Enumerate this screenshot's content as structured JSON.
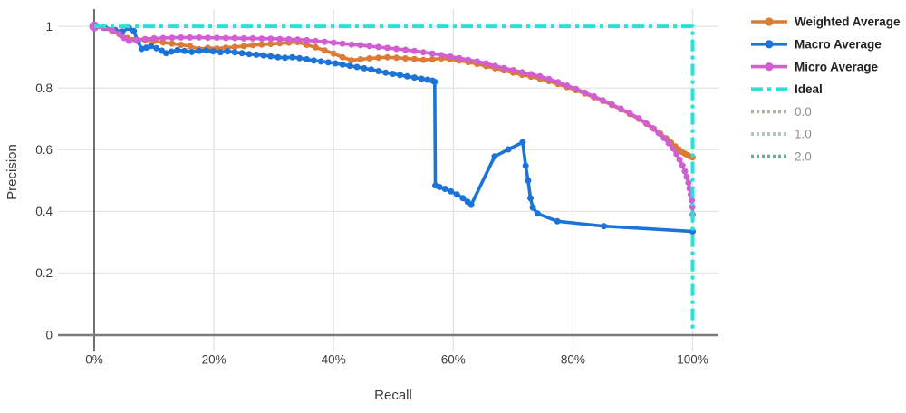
{
  "chart_data": {
    "type": "line",
    "title": "",
    "xlabel": "Recall",
    "ylabel": "Precision",
    "x_ticks": [
      {
        "label": "0%",
        "value": 0
      },
      {
        "label": "20%",
        "value": 20
      },
      {
        "label": "40%",
        "value": 40
      },
      {
        "label": "60%",
        "value": 60
      },
      {
        "label": "80%",
        "value": 80
      },
      {
        "label": "100%",
        "value": 100
      }
    ],
    "y_ticks": [
      {
        "label": "0",
        "value": 0
      },
      {
        "label": "0.2",
        "value": 0.2
      },
      {
        "label": "0.4",
        "value": 0.4
      },
      {
        "label": "0.6",
        "value": 0.6
      },
      {
        "label": "0.8",
        "value": 0.8
      },
      {
        "label": "1",
        "value": 1
      }
    ],
    "xlim": [
      0,
      104.5
    ],
    "ylim": [
      0,
      1.056
    ],
    "grid": true,
    "legend_position": "right",
    "colors": {
      "grid": "#e4e4e4",
      "x_axis_line": "#7a7a7a",
      "y_axis_line": "#4d4d4d",
      "tick_text": "#3c3c3c",
      "axis_title_text": "#3c3c3c",
      "legend_text": "#212121",
      "legend_muted_text": "#8f8f8f",
      "background": "#ffffff"
    },
    "series": [
      {
        "name": "Weighted Average",
        "color": "#db7b34",
        "style": "solid",
        "markers": true,
        "muted": false,
        "points": [
          [
            0,
            1.0
          ],
          [
            1.5,
            0.995
          ],
          [
            3,
            0.985
          ],
          [
            4.5,
            0.972
          ],
          [
            5.5,
            0.962
          ],
          [
            7,
            0.958
          ],
          [
            8.5,
            0.956
          ],
          [
            10,
            0.952
          ],
          [
            11.5,
            0.948
          ],
          [
            13,
            0.944
          ],
          [
            14.5,
            0.94
          ],
          [
            16,
            0.936
          ],
          [
            17.5,
            0.926
          ],
          [
            19,
            0.93
          ],
          [
            20.5,
            0.928
          ],
          [
            22,
            0.931
          ],
          [
            23.5,
            0.933
          ],
          [
            25,
            0.936
          ],
          [
            26.5,
            0.939
          ],
          [
            28,
            0.941
          ],
          [
            29.5,
            0.943
          ],
          [
            31,
            0.945
          ],
          [
            32.5,
            0.947
          ],
          [
            34,
            0.949
          ],
          [
            35.5,
            0.94
          ],
          [
            37,
            0.932
          ],
          [
            38.5,
            0.922
          ],
          [
            40,
            0.912
          ],
          [
            41.5,
            0.9
          ],
          [
            43,
            0.89
          ],
          [
            44.5,
            0.893
          ],
          [
            46,
            0.896
          ],
          [
            47.5,
            0.898
          ],
          [
            49,
            0.9
          ],
          [
            50.5,
            0.898
          ],
          [
            52,
            0.896
          ],
          [
            53.5,
            0.894
          ],
          [
            55,
            0.891
          ],
          [
            56.5,
            0.893
          ],
          [
            58,
            0.896
          ],
          [
            59.5,
            0.893
          ],
          [
            61,
            0.889
          ],
          [
            62.5,
            0.884
          ],
          [
            64,
            0.878
          ],
          [
            65.5,
            0.871
          ],
          [
            67,
            0.864
          ],
          [
            68.5,
            0.857
          ],
          [
            70,
            0.85
          ],
          [
            71.5,
            0.843
          ],
          [
            73,
            0.837
          ],
          [
            74.5,
            0.83
          ],
          [
            76,
            0.822
          ],
          [
            77.5,
            0.813
          ],
          [
            79,
            0.803
          ],
          [
            80.5,
            0.793
          ],
          [
            82,
            0.782
          ],
          [
            83.5,
            0.77
          ],
          [
            85,
            0.758
          ],
          [
            86.5,
            0.745
          ],
          [
            88,
            0.731
          ],
          [
            89.5,
            0.716
          ],
          [
            91,
            0.7
          ],
          [
            92.3,
            0.684
          ],
          [
            93.5,
            0.668
          ],
          [
            94.6,
            0.652
          ],
          [
            95.6,
            0.637
          ],
          [
            96.4,
            0.623
          ],
          [
            97.1,
            0.611
          ],
          [
            97.7,
            0.601
          ],
          [
            98.2,
            0.593
          ],
          [
            98.7,
            0.587
          ],
          [
            99.2,
            0.582
          ],
          [
            99.6,
            0.578
          ],
          [
            100,
            0.575
          ]
        ]
      },
      {
        "name": "Macro Average",
        "color": "#1d74d8",
        "style": "solid",
        "markers": true,
        "muted": false,
        "points": [
          [
            0,
            1.0
          ],
          [
            1.8,
            0.995
          ],
          [
            3.5,
            0.988
          ],
          [
            4.7,
            0.983
          ],
          [
            5.8,
            0.995
          ],
          [
            6.6,
            0.985
          ],
          [
            7.3,
            0.952
          ],
          [
            7.9,
            0.927
          ],
          [
            8.7,
            0.931
          ],
          [
            9.5,
            0.936
          ],
          [
            10.4,
            0.929
          ],
          [
            11.3,
            0.921
          ],
          [
            12,
            0.913
          ],
          [
            12.9,
            0.918
          ],
          [
            13.9,
            0.923
          ],
          [
            15.1,
            0.92
          ],
          [
            16.3,
            0.917
          ],
          [
            17.5,
            0.92
          ],
          [
            18.7,
            0.922
          ],
          [
            19.9,
            0.919
          ],
          [
            21.1,
            0.916
          ],
          [
            22.3,
            0.919
          ],
          [
            23.5,
            0.916
          ],
          [
            24.7,
            0.913
          ],
          [
            25.9,
            0.91
          ],
          [
            27.1,
            0.908
          ],
          [
            28.3,
            0.906
          ],
          [
            29.5,
            0.903
          ],
          [
            30.7,
            0.9
          ],
          [
            31.9,
            0.898
          ],
          [
            33.1,
            0.9
          ],
          [
            34.3,
            0.897
          ],
          [
            35.5,
            0.893
          ],
          [
            36.7,
            0.889
          ],
          [
            37.9,
            0.886
          ],
          [
            39.1,
            0.883
          ],
          [
            40.3,
            0.88
          ],
          [
            41.5,
            0.876
          ],
          [
            42.7,
            0.872
          ],
          [
            43.9,
            0.868
          ],
          [
            45.1,
            0.864
          ],
          [
            46.3,
            0.86
          ],
          [
            47.5,
            0.855
          ],
          [
            48.7,
            0.85
          ],
          [
            49.9,
            0.846
          ],
          [
            51.1,
            0.842
          ],
          [
            52.3,
            0.838
          ],
          [
            53.5,
            0.834
          ],
          [
            54.7,
            0.83
          ],
          [
            55.7,
            0.827
          ],
          [
            56.5,
            0.824
          ],
          [
            56.9,
            0.82
          ],
          [
            57,
            0.484
          ],
          [
            57.7,
            0.479
          ],
          [
            58.6,
            0.473
          ],
          [
            59.6,
            0.465
          ],
          [
            60.6,
            0.455
          ],
          [
            61.6,
            0.443
          ],
          [
            62.4,
            0.431
          ],
          [
            63,
            0.421
          ],
          [
            66.9,
            0.578
          ],
          [
            69.2,
            0.601
          ],
          [
            71.6,
            0.624
          ],
          [
            72.1,
            0.548
          ],
          [
            72.5,
            0.5
          ],
          [
            72.9,
            0.443
          ],
          [
            73.3,
            0.412
          ],
          [
            74.1,
            0.393
          ],
          [
            77.4,
            0.368
          ],
          [
            85.2,
            0.352
          ],
          [
            100,
            0.335
          ]
        ]
      },
      {
        "name": "Micro Average",
        "color": "#d25fd2",
        "style": "solid",
        "markers": true,
        "muted": false,
        "start_marker_radius": 5.5,
        "points": [
          [
            0,
            1.0
          ],
          [
            1.5,
            0.996
          ],
          [
            3,
            0.988
          ],
          [
            4.2,
            0.975
          ],
          [
            5,
            0.962
          ],
          [
            5.8,
            0.953
          ],
          [
            7,
            0.956
          ],
          [
            8.5,
            0.959
          ],
          [
            10,
            0.961
          ],
          [
            11.5,
            0.962
          ],
          [
            13,
            0.963
          ],
          [
            14.5,
            0.964
          ],
          [
            16,
            0.964
          ],
          [
            17.5,
            0.964
          ],
          [
            19,
            0.963
          ],
          [
            20.5,
            0.963
          ],
          [
            22,
            0.962
          ],
          [
            23.5,
            0.962
          ],
          [
            25,
            0.961
          ],
          [
            26.5,
            0.961
          ],
          [
            28,
            0.96
          ],
          [
            29.5,
            0.96
          ],
          [
            31,
            0.959
          ],
          [
            32.5,
            0.958
          ],
          [
            34,
            0.957
          ],
          [
            35.5,
            0.955
          ],
          [
            37,
            0.952
          ],
          [
            38.5,
            0.95
          ],
          [
            40,
            0.947
          ],
          [
            41.5,
            0.944
          ],
          [
            43,
            0.941
          ],
          [
            44.5,
            0.939
          ],
          [
            46,
            0.936
          ],
          [
            47.5,
            0.933
          ],
          [
            49,
            0.93
          ],
          [
            50.5,
            0.927
          ],
          [
            52,
            0.924
          ],
          [
            53.5,
            0.92
          ],
          [
            55,
            0.916
          ],
          [
            56.5,
            0.912
          ],
          [
            58,
            0.907
          ],
          [
            59.5,
            0.902
          ],
          [
            61,
            0.897
          ],
          [
            62.5,
            0.891
          ],
          [
            64,
            0.886
          ],
          [
            65.5,
            0.88
          ],
          [
            67,
            0.872
          ],
          [
            68.5,
            0.865
          ],
          [
            70,
            0.858
          ],
          [
            71.5,
            0.851
          ],
          [
            73,
            0.845
          ],
          [
            74.5,
            0.838
          ],
          [
            76,
            0.829
          ],
          [
            77.5,
            0.819
          ],
          [
            79,
            0.808
          ],
          [
            80.5,
            0.797
          ],
          [
            82,
            0.785
          ],
          [
            83.5,
            0.773
          ],
          [
            85,
            0.76
          ],
          [
            86.5,
            0.747
          ],
          [
            88,
            0.733
          ],
          [
            89.5,
            0.718
          ],
          [
            91,
            0.702
          ],
          [
            92.2,
            0.686
          ],
          [
            93.3,
            0.67
          ],
          [
            94.3,
            0.654
          ],
          [
            95.2,
            0.638
          ],
          [
            96,
            0.621
          ],
          [
            96.7,
            0.604
          ],
          [
            97.3,
            0.586
          ],
          [
            97.8,
            0.568
          ],
          [
            98.3,
            0.549
          ],
          [
            98.7,
            0.53
          ],
          [
            99,
            0.512
          ],
          [
            99.3,
            0.493
          ],
          [
            99.5,
            0.474
          ],
          [
            99.7,
            0.455
          ],
          [
            99.85,
            0.436
          ],
          [
            99.95,
            0.415
          ],
          [
            100,
            0.39
          ]
        ]
      },
      {
        "name": "Ideal",
        "color": "#26e2d8",
        "style": "dashdot",
        "markers": false,
        "muted": false,
        "points": [
          [
            0,
            1.0
          ],
          [
            100,
            1.0
          ],
          [
            100,
            0.015
          ]
        ]
      },
      {
        "name": "0.0",
        "color": "#9fbd90",
        "style": "dotted",
        "markers": false,
        "muted": true,
        "points": []
      },
      {
        "name": "1.0",
        "color": "#aac7d4",
        "style": "dotted",
        "markers": false,
        "muted": true,
        "points": []
      },
      {
        "name": "2.0",
        "color": "#63b285",
        "style": "dotted",
        "markers": false,
        "muted": true,
        "points": []
      }
    ]
  }
}
